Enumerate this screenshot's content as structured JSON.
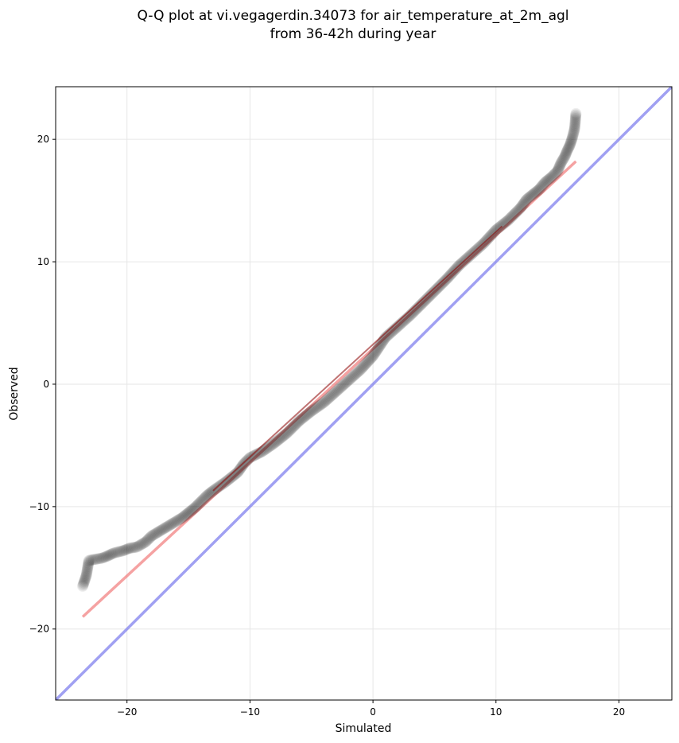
{
  "chart_data": {
    "type": "scatter",
    "title_lines": [
      "Q-Q plot at vi.vegagerdin.34073 for air_temperature_at_2m_agl",
      "from 36-42h during year"
    ],
    "xlabel": "Simulated",
    "ylabel": "Observed",
    "xlim": [
      -25.8,
      24.3
    ],
    "ylim": [
      -25.8,
      24.3
    ],
    "xticks": [
      -20,
      -10,
      0,
      10,
      20
    ],
    "yticks": [
      -20,
      -10,
      0,
      10,
      20
    ],
    "tick_labels": [
      "−20",
      "−10",
      "0",
      "10",
      "20"
    ],
    "grid": true,
    "colors": {
      "points": "#000000",
      "fit_line": "#f07070",
      "identity_line": "#8080ee",
      "grid": "#e6e6e6"
    },
    "quantiles": [
      {
        "x": -23.6,
        "y": -16.5
      },
      {
        "x": -23.3,
        "y": -15.6
      },
      {
        "x": -23.1,
        "y": -14.4
      },
      {
        "x": -22.0,
        "y": -14.2
      },
      {
        "x": -21.5,
        "y": -14.0
      },
      {
        "x": -21.1,
        "y": -13.8
      },
      {
        "x": -20.3,
        "y": -13.6
      },
      {
        "x": -19.8,
        "y": -13.4
      },
      {
        "x": -19.2,
        "y": -13.3
      },
      {
        "x": -18.5,
        "y": -12.9
      },
      {
        "x": -18.0,
        "y": -12.4
      },
      {
        "x": -17.5,
        "y": -12.1
      },
      {
        "x": -17.0,
        "y": -11.8
      },
      {
        "x": -16.5,
        "y": -11.5
      },
      {
        "x": -16.0,
        "y": -11.2
      },
      {
        "x": -15.5,
        "y": -10.9
      },
      {
        "x": -15.0,
        "y": -10.5
      },
      {
        "x": -14.5,
        "y": -10.1
      },
      {
        "x": -14.0,
        "y": -9.6
      },
      {
        "x": -13.5,
        "y": -9.1
      },
      {
        "x": -13.0,
        "y": -8.7
      },
      {
        "x": -12.0,
        "y": -8.0
      },
      {
        "x": -11.0,
        "y": -7.2
      },
      {
        "x": -10.5,
        "y": -6.5
      },
      {
        "x": -10.0,
        "y": -6.0
      },
      {
        "x": -9.0,
        "y": -5.5
      },
      {
        "x": -8.0,
        "y": -4.8
      },
      {
        "x": -7.0,
        "y": -4.0
      },
      {
        "x": -6.0,
        "y": -3.0
      },
      {
        "x": -5.0,
        "y": -2.2
      },
      {
        "x": -4.0,
        "y": -1.5
      },
      {
        "x": -3.0,
        "y": -0.6
      },
      {
        "x": -2.0,
        "y": 0.3
      },
      {
        "x": -1.0,
        "y": 1.2
      },
      {
        "x": 0.0,
        "y": 2.3
      },
      {
        "x": 1.0,
        "y": 3.8
      },
      {
        "x": 2.0,
        "y": 4.7
      },
      {
        "x": 3.0,
        "y": 5.6
      },
      {
        "x": 4.0,
        "y": 6.6
      },
      {
        "x": 5.0,
        "y": 7.6
      },
      {
        "x": 6.0,
        "y": 8.6
      },
      {
        "x": 7.0,
        "y": 9.7
      },
      {
        "x": 8.0,
        "y": 10.6
      },
      {
        "x": 9.0,
        "y": 11.5
      },
      {
        "x": 10.0,
        "y": 12.6
      },
      {
        "x": 11.0,
        "y": 13.4
      },
      {
        "x": 11.5,
        "y": 13.9
      },
      {
        "x": 12.0,
        "y": 14.4
      },
      {
        "x": 12.5,
        "y": 15.1
      },
      {
        "x": 13.0,
        "y": 15.5
      },
      {
        "x": 13.5,
        "y": 15.9
      },
      {
        "x": 14.0,
        "y": 16.5
      },
      {
        "x": 14.5,
        "y": 16.9
      },
      {
        "x": 15.0,
        "y": 17.4
      },
      {
        "x": 15.3,
        "y": 18.1
      },
      {
        "x": 15.6,
        "y": 18.6
      },
      {
        "x": 15.8,
        "y": 19.1
      },
      {
        "x": 16.0,
        "y": 19.5
      },
      {
        "x": 16.2,
        "y": 20.1
      },
      {
        "x": 16.4,
        "y": 20.9
      },
      {
        "x": 16.5,
        "y": 22.1
      }
    ],
    "fit_line": {
      "x": [
        -23.6,
        16.5
      ],
      "y": [
        -19.0,
        18.2
      ]
    },
    "identity_line": {
      "x": [
        -25.8,
        24.3
      ],
      "y": [
        -25.8,
        24.3
      ]
    }
  }
}
